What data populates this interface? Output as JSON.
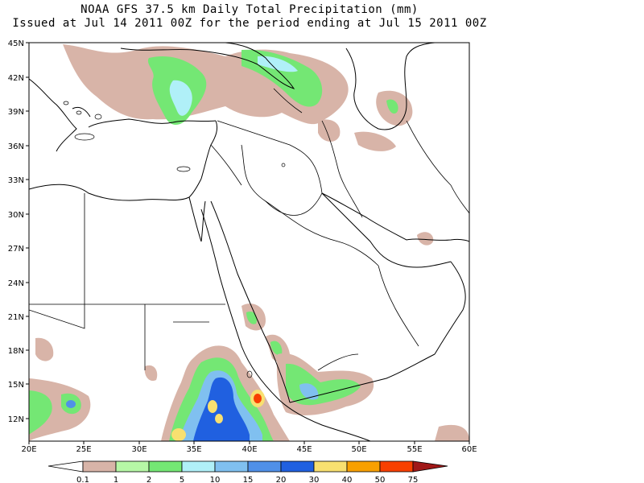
{
  "title_line1": "NOAA GFS 37.5 km Daily Total Precipitation (mm)",
  "title_line2": "Issued at Jul 14 2011 00Z for the period ending at Jul 15 2011 00Z",
  "lat_labels": [
    "45N",
    "42N",
    "39N",
    "36N",
    "33N",
    "30N",
    "27N",
    "24N",
    "21N",
    "18N",
    "15N",
    "12N"
  ],
  "lon_labels": [
    "20E",
    "25E",
    "30E",
    "35E",
    "40E",
    "45E",
    "50E",
    "55E",
    "60E"
  ],
  "colorbar": {
    "labels": [
      "0.1",
      "1",
      "2",
      "5",
      "10",
      "15",
      "20",
      "30",
      "40",
      "50",
      "75"
    ],
    "colors": [
      "#d8b4a8",
      "#b6f7a6",
      "#74e774",
      "#b0f0f8",
      "#80c0f0",
      "#5090e8",
      "#2060e0",
      "#f8e070",
      "#f8a000",
      "#f84000",
      "#a01818"
    ]
  },
  "land_color": "#ffffff",
  "coast_color": "#000000"
}
